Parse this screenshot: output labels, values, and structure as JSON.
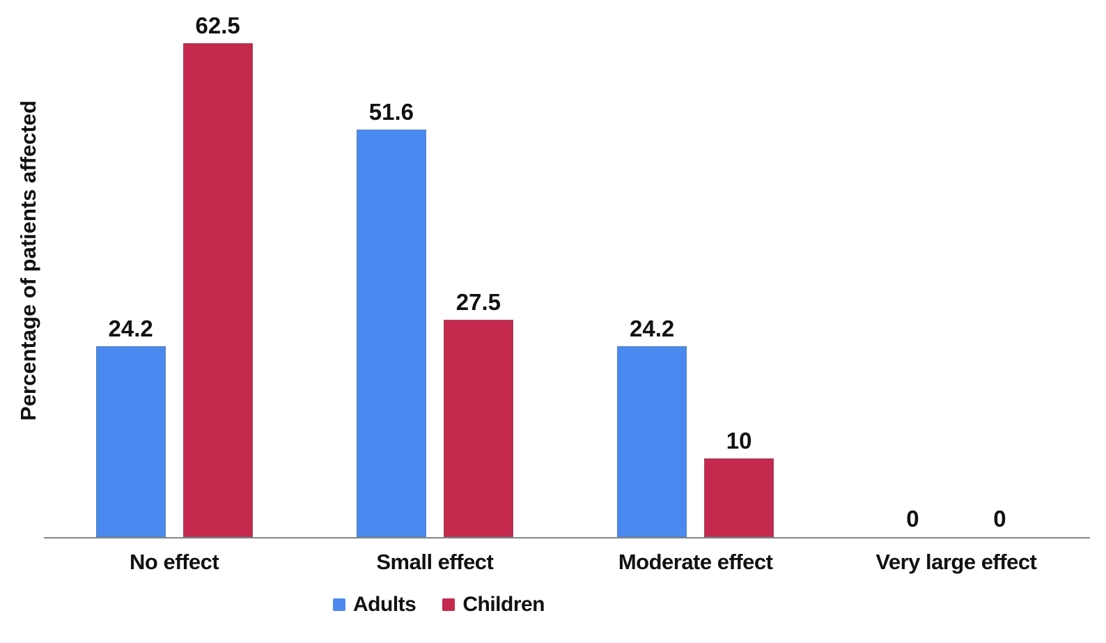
{
  "chart_data": {
    "type": "bar",
    "title": "",
    "xlabel": "",
    "ylabel": "Percentage of patients affected",
    "categories": [
      "No effect",
      "Small effect",
      "Moderate effect",
      "Very large effect"
    ],
    "series": [
      {
        "name": "Adults",
        "color": "#4A8AF0",
        "values": [
          24.2,
          51.6,
          24.2,
          0
        ],
        "labels": [
          "24.2",
          "51.6",
          "24.2",
          "0"
        ]
      },
      {
        "name": "Children",
        "color": "#C5294D",
        "values": [
          62.5,
          27.5,
          10,
          0
        ],
        "labels": [
          "62.5",
          "27.5",
          "10",
          "0"
        ]
      }
    ],
    "ylim": [
      0,
      68
    ],
    "grid": false,
    "legend_position": "bottom",
    "axis_color": "#808884",
    "value_labels_shown": true
  }
}
